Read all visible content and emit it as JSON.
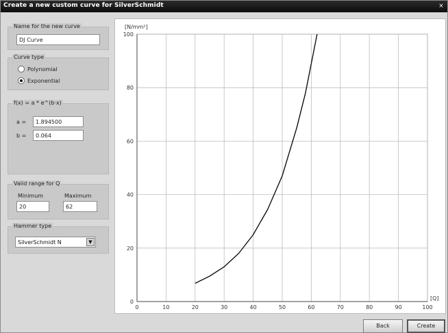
{
  "window": {
    "title": "Create a new custom curve for SilverSchmidt",
    "close_glyph": "×"
  },
  "name_group": {
    "legend": "Name for the new curve",
    "value": "DJ Curve"
  },
  "curve_type": {
    "legend": "Curve type",
    "options": [
      {
        "label": "Polynomial",
        "checked": false
      },
      {
        "label": "Exponential",
        "checked": true
      }
    ]
  },
  "formula": {
    "legend": "f(x) = a * e^(b·x)",
    "a_label": "a =",
    "a_value": "1.894500",
    "b_label": "b =",
    "b_value": "0.064"
  },
  "range": {
    "legend": "Valid range for Q",
    "min_label": "Minimum",
    "min_value": "20",
    "max_label": "Maximum",
    "max_value": "62"
  },
  "hammer": {
    "legend": "Hammer type",
    "value": "SilverSchmidt N"
  },
  "buttons": {
    "back": "Back",
    "create": "Create"
  },
  "chart_data": {
    "type": "line",
    "ylabel": "[N/mm²]",
    "xlabel": "[Q]",
    "xlim": [
      0,
      100
    ],
    "ylim": [
      0,
      100
    ],
    "xticks": [
      0,
      10,
      20,
      30,
      40,
      50,
      60,
      70,
      80,
      90,
      100
    ],
    "yticks": [
      0,
      20,
      40,
      60,
      80,
      100
    ],
    "grid": true,
    "series": [
      {
        "x": [
          20,
          25,
          30,
          35,
          40,
          45,
          50,
          55,
          58,
          62
        ],
        "y": [
          6.8,
          9.5,
          13.0,
          18.0,
          25.0,
          34.5,
          47.0,
          65.0,
          78.0,
          100
        ]
      }
    ]
  }
}
